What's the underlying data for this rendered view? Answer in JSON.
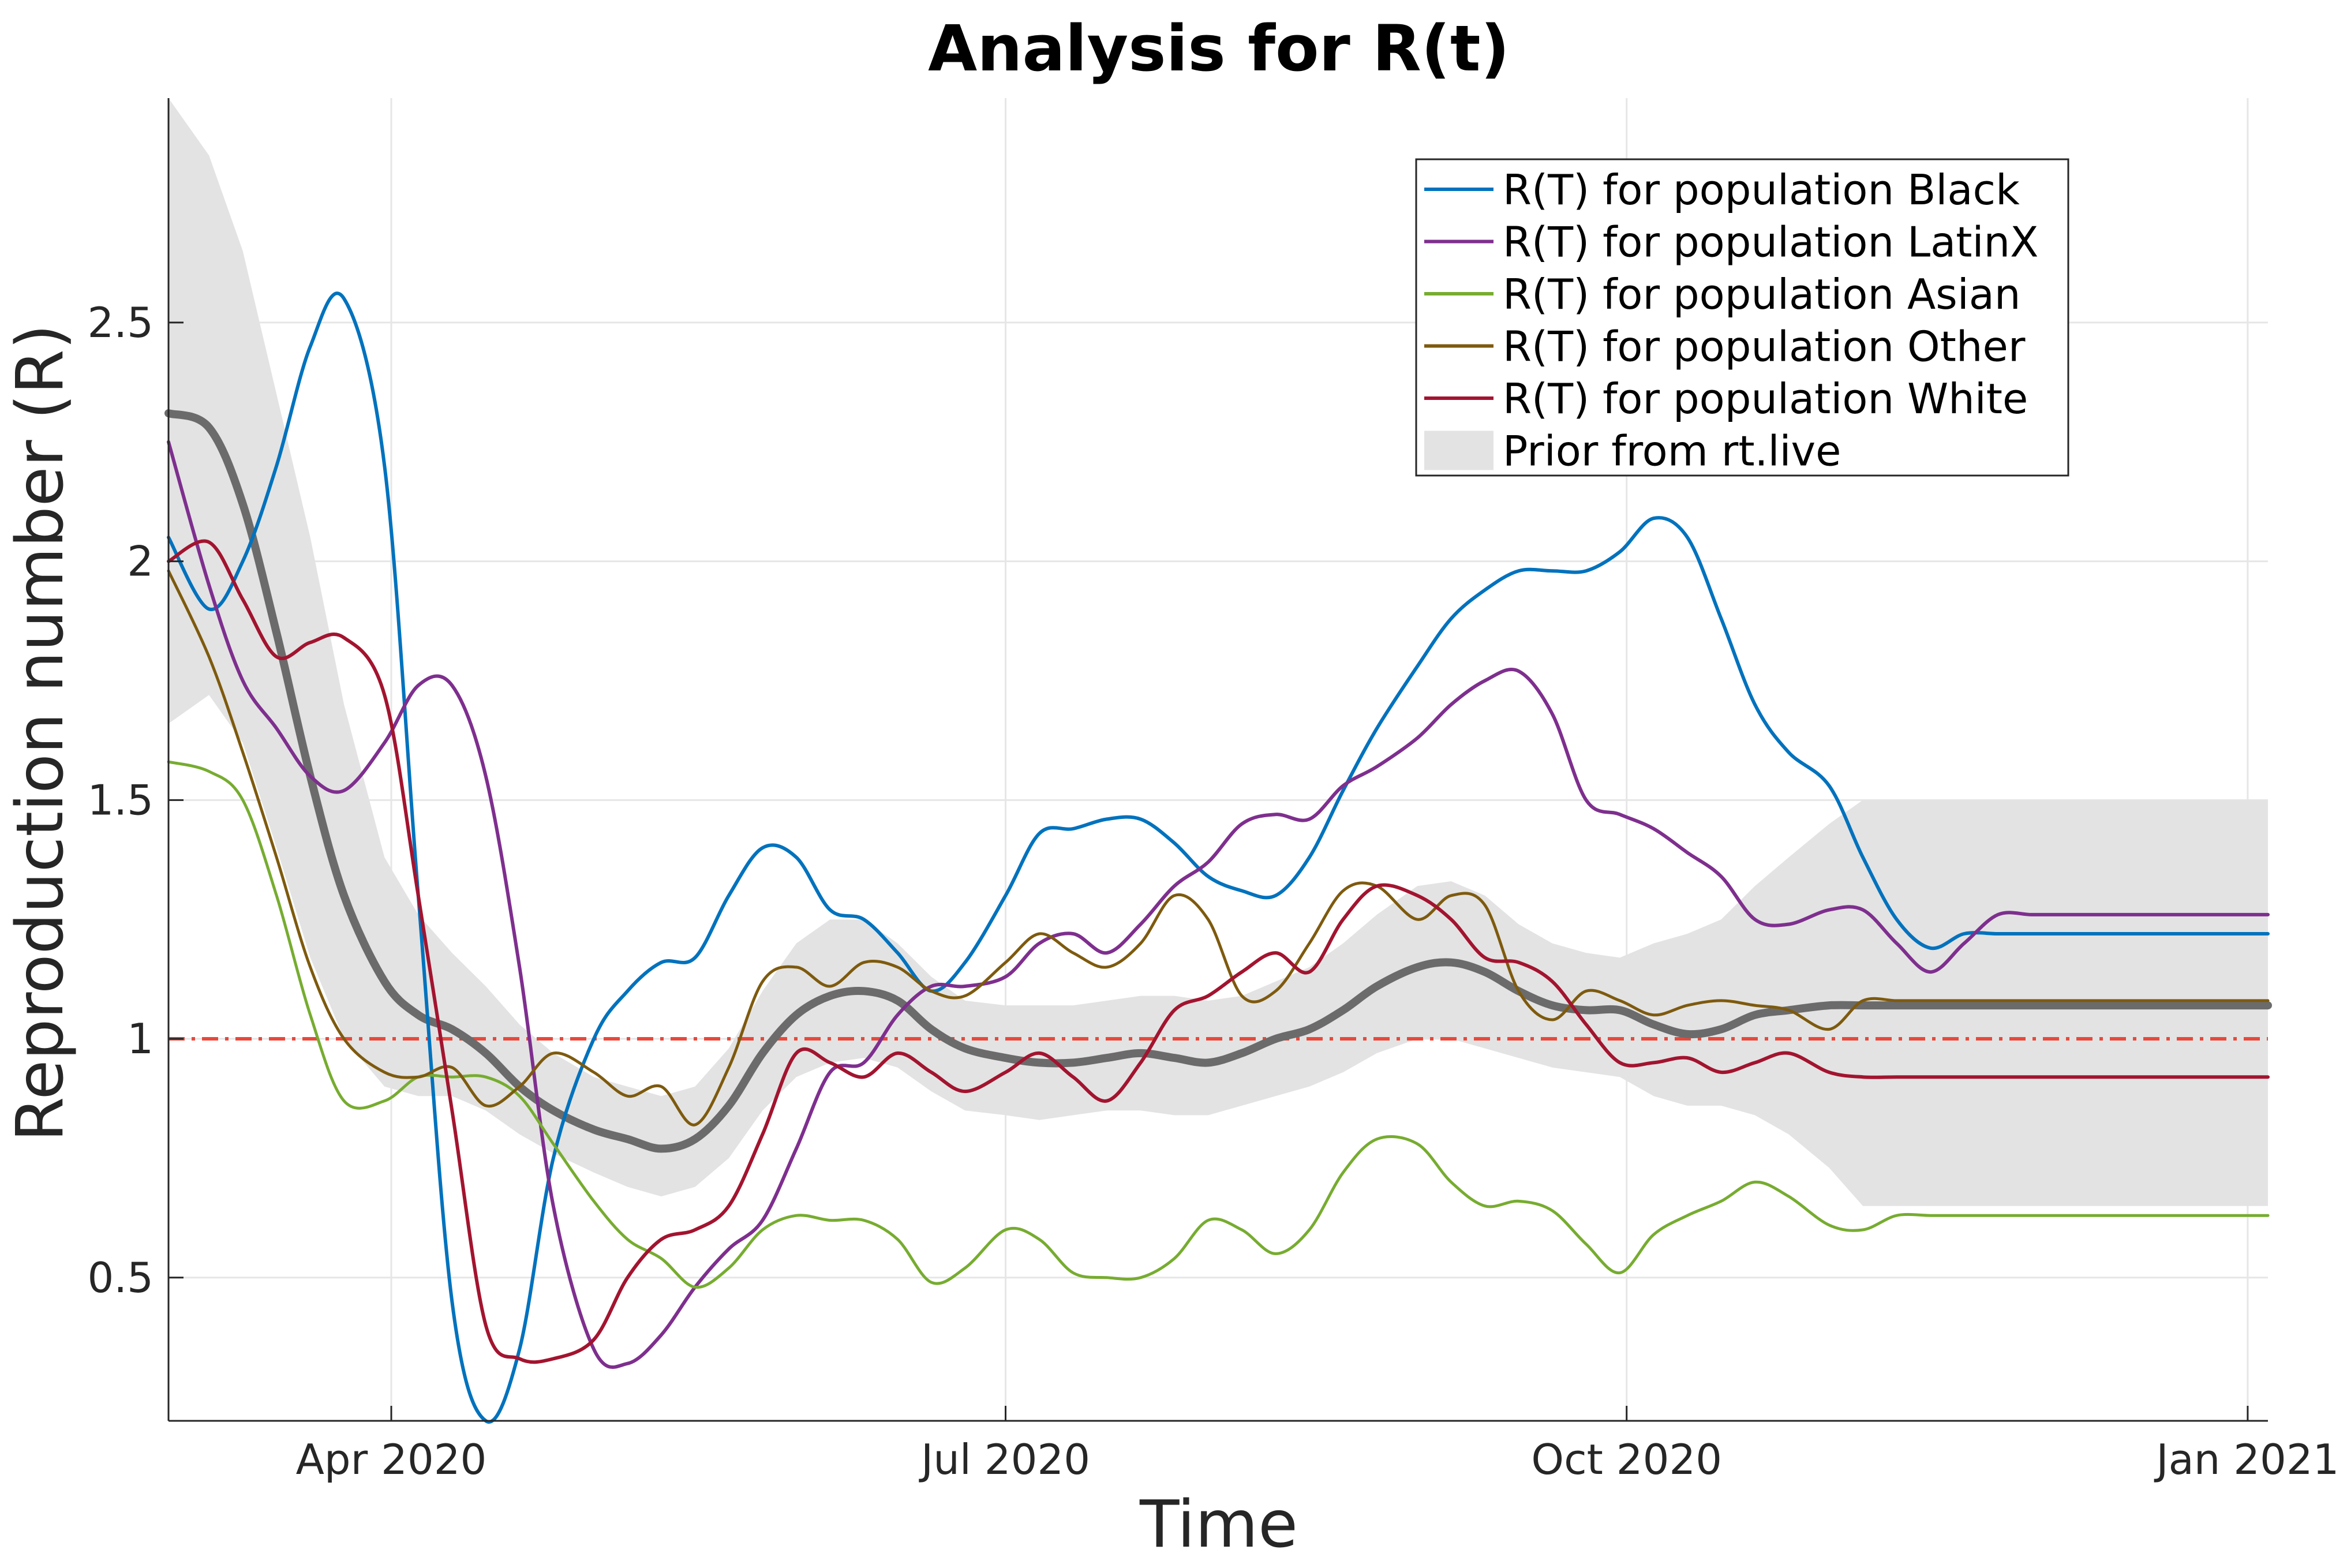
{
  "chart_data": {
    "type": "line",
    "title": "Analysis for R(t)",
    "xlabel": "Time",
    "ylabel": "Reproduction number (R)",
    "x_ticks": [
      "Apr 2020",
      "Jul 2020",
      "Oct 2020",
      "Jan 2021"
    ],
    "x_tick_dates": [
      "2020-04-01",
      "2020-07-01",
      "2020-10-01",
      "2021-01-01"
    ],
    "y_ticks": [
      0.5,
      1,
      1.5,
      2,
      2.5
    ],
    "y_tick_labels": [
      "0.5",
      "1",
      "1.5",
      "2",
      "2.5"
    ],
    "xlim": [
      "2020-02-28",
      "2021-01-04"
    ],
    "ylim": [
      0.2,
      2.97
    ],
    "grid": true,
    "legend_position": "top-right",
    "reference_line": {
      "y": 1,
      "color": "#e8483b",
      "style": "dash-dot"
    },
    "dates": [
      "2020-02-28",
      "2020-03-05",
      "2020-03-10",
      "2020-03-15",
      "2020-03-20",
      "2020-03-25",
      "2020-03-31",
      "2020-04-05",
      "2020-04-10",
      "2020-04-15",
      "2020-04-20",
      "2020-04-25",
      "2020-05-01",
      "2020-05-06",
      "2020-05-11",
      "2020-05-16",
      "2020-05-21",
      "2020-05-26",
      "2020-05-31",
      "2020-06-05",
      "2020-06-10",
      "2020-06-15",
      "2020-06-20",
      "2020-06-25",
      "2020-07-01",
      "2020-07-06",
      "2020-07-11",
      "2020-07-16",
      "2020-07-21",
      "2020-07-26",
      "2020-07-31",
      "2020-08-05",
      "2020-08-10",
      "2020-08-15",
      "2020-08-20",
      "2020-08-25",
      "2020-08-31",
      "2020-09-05",
      "2020-09-10",
      "2020-09-15",
      "2020-09-20",
      "2020-09-25",
      "2020-09-30",
      "2020-10-05",
      "2020-10-10",
      "2020-10-15",
      "2020-10-20",
      "2020-10-25",
      "2020-10-31",
      "2020-11-05",
      "2020-11-10",
      "2020-11-15",
      "2020-11-20",
      "2020-11-25",
      "2020-11-30",
      "2020-12-05",
      "2020-12-10",
      "2020-12-15",
      "2020-12-20",
      "2020-12-25",
      "2020-12-31",
      "2021-01-04"
    ],
    "series": [
      {
        "name": "R(T) for population Black",
        "color": "#0072bd",
        "width": 6,
        "values": [
          2.05,
          1.9,
          2.0,
          2.2,
          2.45,
          2.55,
          2.2,
          1.3,
          0.45,
          0.2,
          0.35,
          0.75,
          1.0,
          1.1,
          1.16,
          1.17,
          1.3,
          1.4,
          1.38,
          1.27,
          1.25,
          1.18,
          1.1,
          1.16,
          1.3,
          1.43,
          1.44,
          1.46,
          1.46,
          1.41,
          1.34,
          1.31,
          1.3,
          1.38,
          1.52,
          1.65,
          1.78,
          1.88,
          1.94,
          1.98,
          1.98,
          1.98,
          2.02,
          2.09,
          2.05,
          1.88,
          1.7,
          1.6,
          1.53,
          1.38,
          1.25,
          1.19,
          1.22,
          1.22,
          1.22,
          1.22,
          1.22,
          1.22,
          1.22,
          1.22,
          1.22,
          1.22
        ]
      },
      {
        "name": "R(T) for population LatinX",
        "color": "#7e2f8e",
        "width": 6,
        "values": [
          2.25,
          1.95,
          1.75,
          1.65,
          1.55,
          1.52,
          1.62,
          1.74,
          1.74,
          1.55,
          1.15,
          0.65,
          0.35,
          0.32,
          0.38,
          0.48,
          0.56,
          0.62,
          0.77,
          0.93,
          0.95,
          1.05,
          1.11,
          1.11,
          1.13,
          1.2,
          1.22,
          1.18,
          1.24,
          1.32,
          1.37,
          1.45,
          1.47,
          1.46,
          1.53,
          1.57,
          1.63,
          1.7,
          1.75,
          1.77,
          1.68,
          1.5,
          1.47,
          1.44,
          1.39,
          1.34,
          1.25,
          1.24,
          1.27,
          1.27,
          1.2,
          1.14,
          1.2,
          1.26,
          1.26,
          1.26,
          1.26,
          1.26,
          1.26,
          1.26,
          1.26,
          1.26
        ]
      },
      {
        "name": "R(T) for population Asian",
        "color": "#77ac30",
        "width": 5,
        "values": [
          1.58,
          1.56,
          1.5,
          1.3,
          1.05,
          0.87,
          0.87,
          0.92,
          0.92,
          0.92,
          0.88,
          0.78,
          0.66,
          0.58,
          0.54,
          0.48,
          0.52,
          0.6,
          0.63,
          0.62,
          0.62,
          0.58,
          0.49,
          0.52,
          0.6,
          0.58,
          0.51,
          0.5,
          0.5,
          0.54,
          0.62,
          0.6,
          0.55,
          0.6,
          0.72,
          0.79,
          0.78,
          0.7,
          0.65,
          0.66,
          0.64,
          0.57,
          0.51,
          0.59,
          0.63,
          0.66,
          0.7,
          0.67,
          0.61,
          0.6,
          0.63,
          0.63,
          0.63,
          0.63,
          0.63,
          0.63,
          0.63,
          0.63,
          0.63,
          0.63,
          0.63,
          0.63
        ]
      },
      {
        "name": "R(T) for population Other",
        "color": "#7e5a0e",
        "width": 5,
        "values": [
          1.98,
          1.8,
          1.6,
          1.38,
          1.15,
          1.0,
          0.93,
          0.92,
          0.94,
          0.86,
          0.9,
          0.97,
          0.93,
          0.88,
          0.9,
          0.82,
          0.94,
          1.12,
          1.15,
          1.11,
          1.16,
          1.15,
          1.1,
          1.09,
          1.16,
          1.22,
          1.18,
          1.15,
          1.2,
          1.3,
          1.25,
          1.09,
          1.1,
          1.2,
          1.31,
          1.32,
          1.25,
          1.3,
          1.28,
          1.1,
          1.04,
          1.1,
          1.08,
          1.05,
          1.07,
          1.08,
          1.07,
          1.06,
          1.02,
          1.08,
          1.08,
          1.08,
          1.08,
          1.08,
          1.08,
          1.08,
          1.08,
          1.08,
          1.08,
          1.08,
          1.08,
          1.08
        ]
      },
      {
        "name": "R(T) for population White",
        "color": "#a2142f",
        "width": 6,
        "values": [
          2.0,
          2.04,
          1.92,
          1.8,
          1.83,
          1.84,
          1.72,
          1.3,
          0.85,
          0.4,
          0.33,
          0.33,
          0.37,
          0.5,
          0.58,
          0.6,
          0.65,
          0.8,
          0.97,
          0.95,
          0.92,
          0.97,
          0.93,
          0.89,
          0.93,
          0.97,
          0.92,
          0.87,
          0.95,
          1.06,
          1.09,
          1.14,
          1.18,
          1.14,
          1.25,
          1.32,
          1.3,
          1.25,
          1.17,
          1.16,
          1.12,
          1.03,
          0.95,
          0.95,
          0.96,
          0.93,
          0.95,
          0.97,
          0.93,
          0.92,
          0.92,
          0.92,
          0.92,
          0.92,
          0.92,
          0.92,
          0.92,
          0.92,
          0.92,
          0.92,
          0.92,
          0.92
        ]
      },
      {
        "name": "",
        "color": "#6b6b6b",
        "width": 14,
        "values": [
          2.31,
          2.28,
          2.12,
          1.85,
          1.55,
          1.3,
          1.12,
          1.05,
          1.02,
          0.97,
          0.9,
          0.85,
          0.81,
          0.79,
          0.77,
          0.79,
          0.86,
          0.97,
          1.05,
          1.09,
          1.1,
          1.08,
          1.02,
          0.98,
          0.96,
          0.95,
          0.95,
          0.96,
          0.97,
          0.96,
          0.95,
          0.97,
          1.0,
          1.02,
          1.06,
          1.11,
          1.15,
          1.16,
          1.14,
          1.1,
          1.07,
          1.06,
          1.06,
          1.03,
          1.01,
          1.02,
          1.05,
          1.06,
          1.07,
          1.07,
          1.07,
          1.07,
          1.07,
          1.07,
          1.07,
          1.07,
          1.07,
          1.07,
          1.07,
          1.07,
          1.07,
          1.07
        ]
      }
    ],
    "band": {
      "name": "Prior from rt.live",
      "color": "#e3e3e3",
      "upper": [
        2.97,
        2.85,
        2.65,
        2.35,
        2.05,
        1.7,
        1.38,
        1.26,
        1.18,
        1.11,
        1.03,
        0.97,
        0.92,
        0.9,
        0.88,
        0.9,
        0.98,
        1.1,
        1.2,
        1.25,
        1.25,
        1.2,
        1.13,
        1.08,
        1.07,
        1.07,
        1.07,
        1.08,
        1.09,
        1.09,
        1.08,
        1.09,
        1.12,
        1.15,
        1.2,
        1.26,
        1.32,
        1.33,
        1.3,
        1.24,
        1.2,
        1.18,
        1.17,
        1.2,
        1.22,
        1.25,
        1.32,
        1.38,
        1.45,
        1.5,
        1.5,
        1.5,
        1.5,
        1.5,
        1.5,
        1.5,
        1.5,
        1.5,
        1.5,
        1.5,
        1.5,
        1.5
      ],
      "lower": [
        1.66,
        1.72,
        1.62,
        1.4,
        1.17,
        1.0,
        0.9,
        0.88,
        0.88,
        0.85,
        0.8,
        0.76,
        0.72,
        0.69,
        0.67,
        0.69,
        0.75,
        0.85,
        0.92,
        0.95,
        0.96,
        0.94,
        0.89,
        0.85,
        0.84,
        0.83,
        0.84,
        0.85,
        0.85,
        0.84,
        0.84,
        0.86,
        0.88,
        0.9,
        0.93,
        0.97,
        1.0,
        1.0,
        0.98,
        0.96,
        0.94,
        0.93,
        0.92,
        0.88,
        0.86,
        0.86,
        0.84,
        0.8,
        0.73,
        0.65,
        0.65,
        0.65,
        0.65,
        0.65,
        0.65,
        0.65,
        0.65,
        0.65,
        0.65,
        0.65,
        0.65,
        0.65
      ]
    }
  }
}
